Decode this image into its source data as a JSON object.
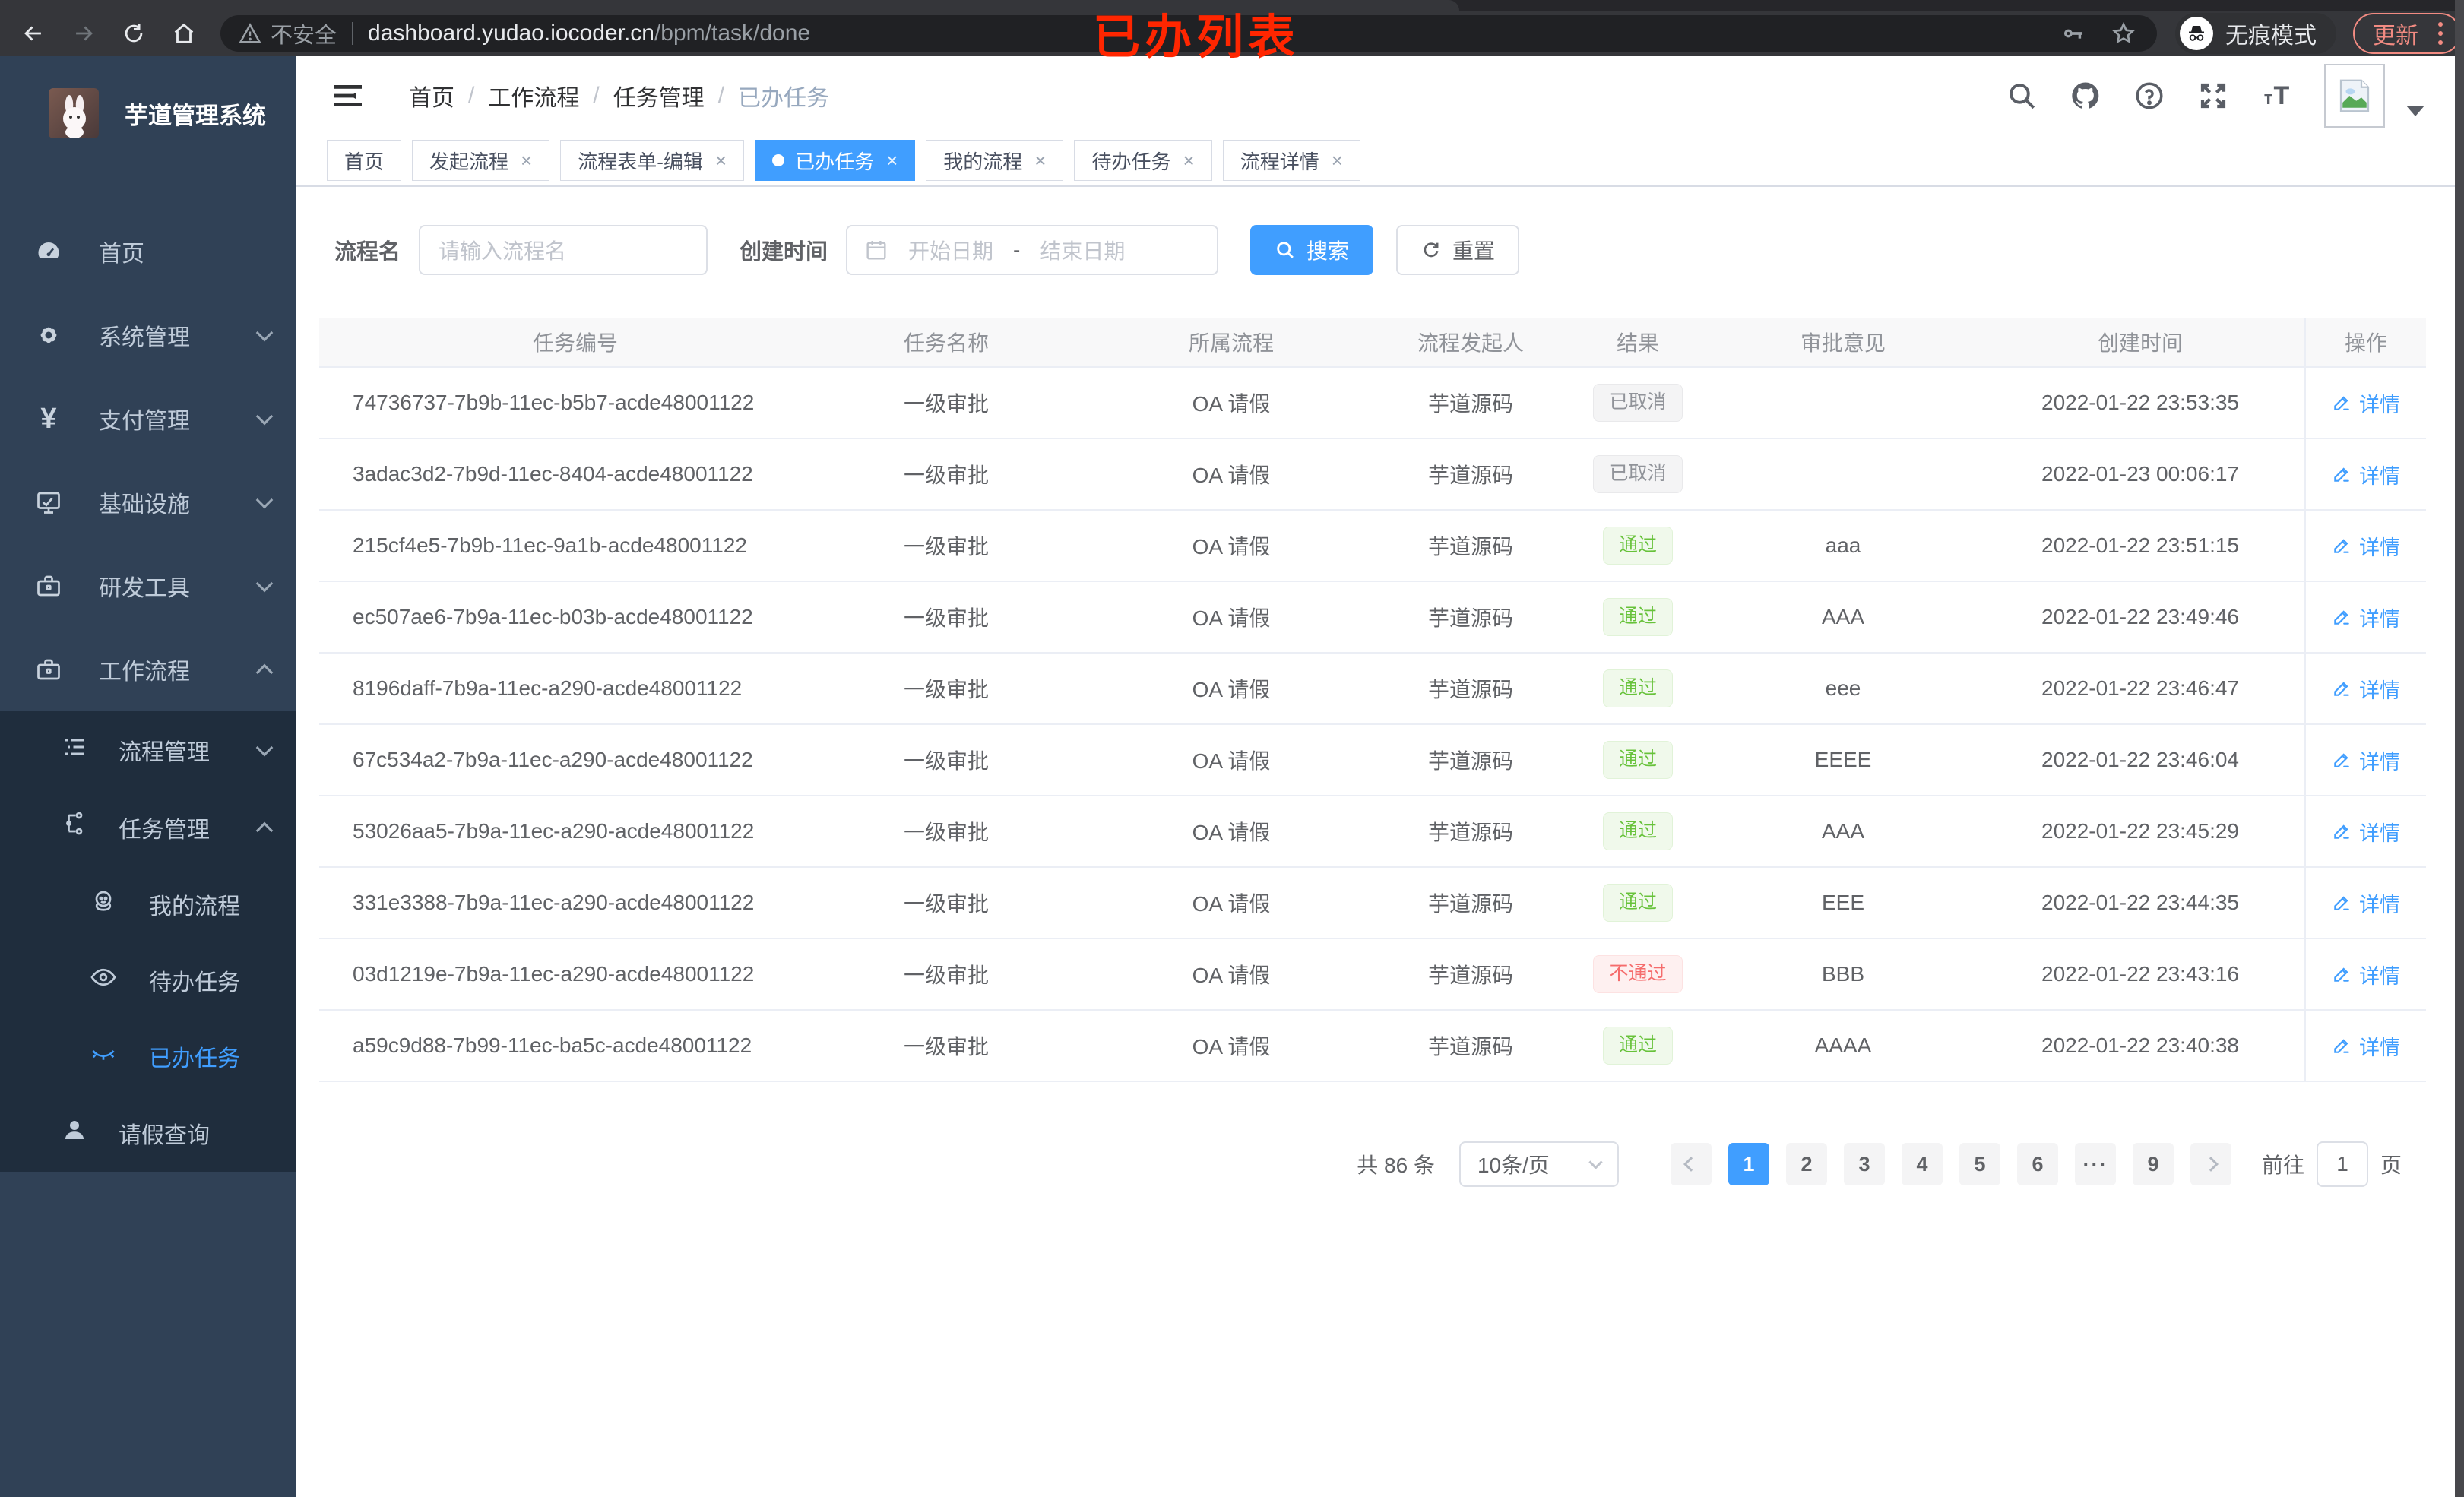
{
  "browser": {
    "not_secure_label": "不安全",
    "url_host": "dashboard.yudao.iocoder.cn",
    "url_path": "/bpm/task/done",
    "incognito_label": "无痕模式",
    "update_label": "更新"
  },
  "annotation": "已办列表",
  "sidebar": {
    "title": "芋道管理系统",
    "menu": [
      {
        "label": "首页"
      },
      {
        "label": "系统管理"
      },
      {
        "label": "支付管理"
      },
      {
        "label": "基础设施"
      },
      {
        "label": "研发工具"
      },
      {
        "label": "工作流程"
      }
    ],
    "submenu": [
      {
        "label": "流程管理"
      },
      {
        "label": "任务管理"
      }
    ],
    "task_menu": [
      {
        "label": "我的流程"
      },
      {
        "label": "待办任务"
      },
      {
        "label": "已办任务"
      },
      {
        "label": "请假查询"
      }
    ]
  },
  "header": {
    "breadcrumb": [
      "首页",
      "工作流程",
      "任务管理",
      "已办任务"
    ],
    "separator": "/",
    "font_size_icon_label": "tT"
  },
  "tabs": {
    "close_glyph": "×",
    "items": [
      {
        "label": "首页",
        "closable": false,
        "active": false
      },
      {
        "label": "发起流程",
        "closable": true,
        "active": false
      },
      {
        "label": "流程表单-编辑",
        "closable": true,
        "active": false
      },
      {
        "label": "已办任务",
        "closable": true,
        "active": true
      },
      {
        "label": "我的流程",
        "closable": true,
        "active": false
      },
      {
        "label": "待办任务",
        "closable": true,
        "active": false
      },
      {
        "label": "流程详情",
        "closable": true,
        "active": false
      }
    ]
  },
  "filters": {
    "name_label": "流程名",
    "name_placeholder": "请输入流程名",
    "time_label": "创建时间",
    "start_placeholder": "开始日期",
    "range_separator": "-",
    "end_placeholder": "结束日期",
    "search_label": "搜索",
    "reset_label": "重置"
  },
  "table": {
    "columns": [
      "任务编号",
      "任务名称",
      "所属流程",
      "流程发起人",
      "结果",
      "审批意见",
      "创建时间",
      "操作"
    ],
    "detail_label": "详情",
    "rows": [
      {
        "id": "74736737-7b9b-11ec-b5b7-acde48001122",
        "name": "一级审批",
        "process": "OA 请假",
        "starter": "芋道源码",
        "result": "已取消",
        "result_type": "cancel",
        "comment": "",
        "created": "2022-01-22 23:53:35"
      },
      {
        "id": "3adac3d2-7b9d-11ec-8404-acde48001122",
        "name": "一级审批",
        "process": "OA 请假",
        "starter": "芋道源码",
        "result": "已取消",
        "result_type": "cancel",
        "comment": "",
        "created": "2022-01-23 00:06:17"
      },
      {
        "id": "215cf4e5-7b9b-11ec-9a1b-acde48001122",
        "name": "一级审批",
        "process": "OA 请假",
        "starter": "芋道源码",
        "result": "通过",
        "result_type": "pass",
        "comment": "aaa",
        "created": "2022-01-22 23:51:15"
      },
      {
        "id": "ec507ae6-7b9a-11ec-b03b-acde48001122",
        "name": "一级审批",
        "process": "OA 请假",
        "starter": "芋道源码",
        "result": "通过",
        "result_type": "pass",
        "comment": "AAA",
        "created": "2022-01-22 23:49:46"
      },
      {
        "id": "8196daff-7b9a-11ec-a290-acde48001122",
        "name": "一级审批",
        "process": "OA 请假",
        "starter": "芋道源码",
        "result": "通过",
        "result_type": "pass",
        "comment": "eee",
        "created": "2022-01-22 23:46:47"
      },
      {
        "id": "67c534a2-7b9a-11ec-a290-acde48001122",
        "name": "一级审批",
        "process": "OA 请假",
        "starter": "芋道源码",
        "result": "通过",
        "result_type": "pass",
        "comment": "EEEE",
        "created": "2022-01-22 23:46:04"
      },
      {
        "id": "53026aa5-7b9a-11ec-a290-acde48001122",
        "name": "一级审批",
        "process": "OA 请假",
        "starter": "芋道源码",
        "result": "通过",
        "result_type": "pass",
        "comment": "AAA",
        "created": "2022-01-22 23:45:29"
      },
      {
        "id": "331e3388-7b9a-11ec-a290-acde48001122",
        "name": "一级审批",
        "process": "OA 请假",
        "starter": "芋道源码",
        "result": "通过",
        "result_type": "pass",
        "comment": "EEE",
        "created": "2022-01-22 23:44:35"
      },
      {
        "id": "03d1219e-7b9a-11ec-a290-acde48001122",
        "name": "一级审批",
        "process": "OA 请假",
        "starter": "芋道源码",
        "result": "不通过",
        "result_type": "fail",
        "comment": "BBB",
        "created": "2022-01-22 23:43:16"
      },
      {
        "id": "a59c9d88-7b99-11ec-ba5c-acde48001122",
        "name": "一级审批",
        "process": "OA 请假",
        "starter": "芋道源码",
        "result": "通过",
        "result_type": "pass",
        "comment": "AAAA",
        "created": "2022-01-22 23:40:38"
      }
    ]
  },
  "pagination": {
    "total_label": "共 86 条",
    "page_size_label": "10条/页",
    "pages": [
      "1",
      "2",
      "3",
      "4",
      "5",
      "6",
      "···",
      "9"
    ],
    "active_page": "1",
    "goto_label": "前往",
    "goto_value": "1",
    "unit_label": "页"
  },
  "colors": {
    "primary": "#409eff",
    "sidebar_bg": "#304156",
    "submenu_bg": "#1f2d3d",
    "pass_green": "#67c23a",
    "fail_red": "#f56c6c",
    "cancel_gray": "#909399",
    "annotation_red": "#ff2600",
    "update_salmon": "#f28b82"
  }
}
